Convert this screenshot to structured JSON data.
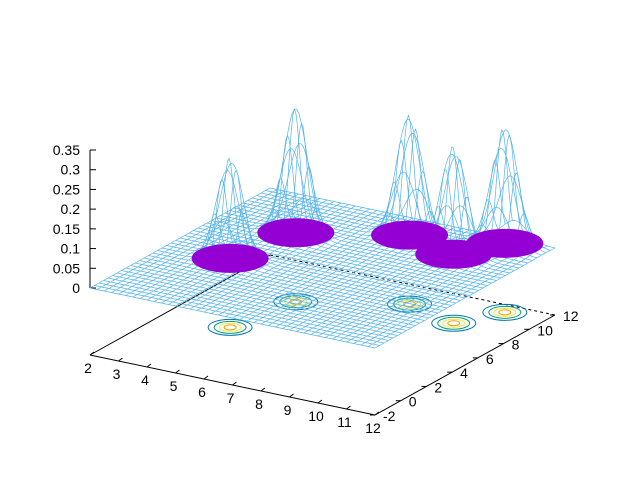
{
  "chart_data": {
    "type": "surface",
    "title": "",
    "xlabel": "",
    "ylabel": "",
    "zlabel": "",
    "xlim": [
      2,
      12
    ],
    "ylim": [
      -2,
      12
    ],
    "zlim": [
      0,
      0.35
    ],
    "x_ticks": [
      "2",
      "3",
      "4",
      "5",
      "6",
      "7",
      "8",
      "9",
      "10",
      "11",
      "12"
    ],
    "y_ticks": [
      "-2",
      "0",
      "2",
      "4",
      "6",
      "8",
      "10",
      "12"
    ],
    "z_ticks": [
      "0",
      "0.05",
      "0.1",
      "0.15",
      "0.2",
      "0.25",
      "0.3",
      "0.35"
    ],
    "surface": {
      "description_type": "sum of gaussian peaks",
      "peaks": [
        {
          "x": 4.3,
          "y": 3.8,
          "height": 0.26
        },
        {
          "x": 4.8,
          "y": 7.8,
          "height": 0.32
        },
        {
          "x": 7.8,
          "y": 10.0,
          "height": 0.31
        },
        {
          "x": 9.8,
          "y": 9.0,
          "height": 0.28
        },
        {
          "x": 10.6,
          "y": 11.2,
          "height": 0.3
        }
      ],
      "mesh_color": "#56b4e9",
      "cap_color": "#9400d3"
    },
    "base_contours": [
      {
        "x": 4.3,
        "y": 3.8
      },
      {
        "x": 4.8,
        "y": 7.8
      },
      {
        "x": 7.8,
        "y": 10.0
      },
      {
        "x": 9.8,
        "y": 9.0
      },
      {
        "x": 10.6,
        "y": 11.2
      }
    ],
    "contour_colors": [
      "#0072b2",
      "#009e73",
      "#e69f00",
      "#f0e442"
    ],
    "grid": false,
    "legend": "none"
  }
}
